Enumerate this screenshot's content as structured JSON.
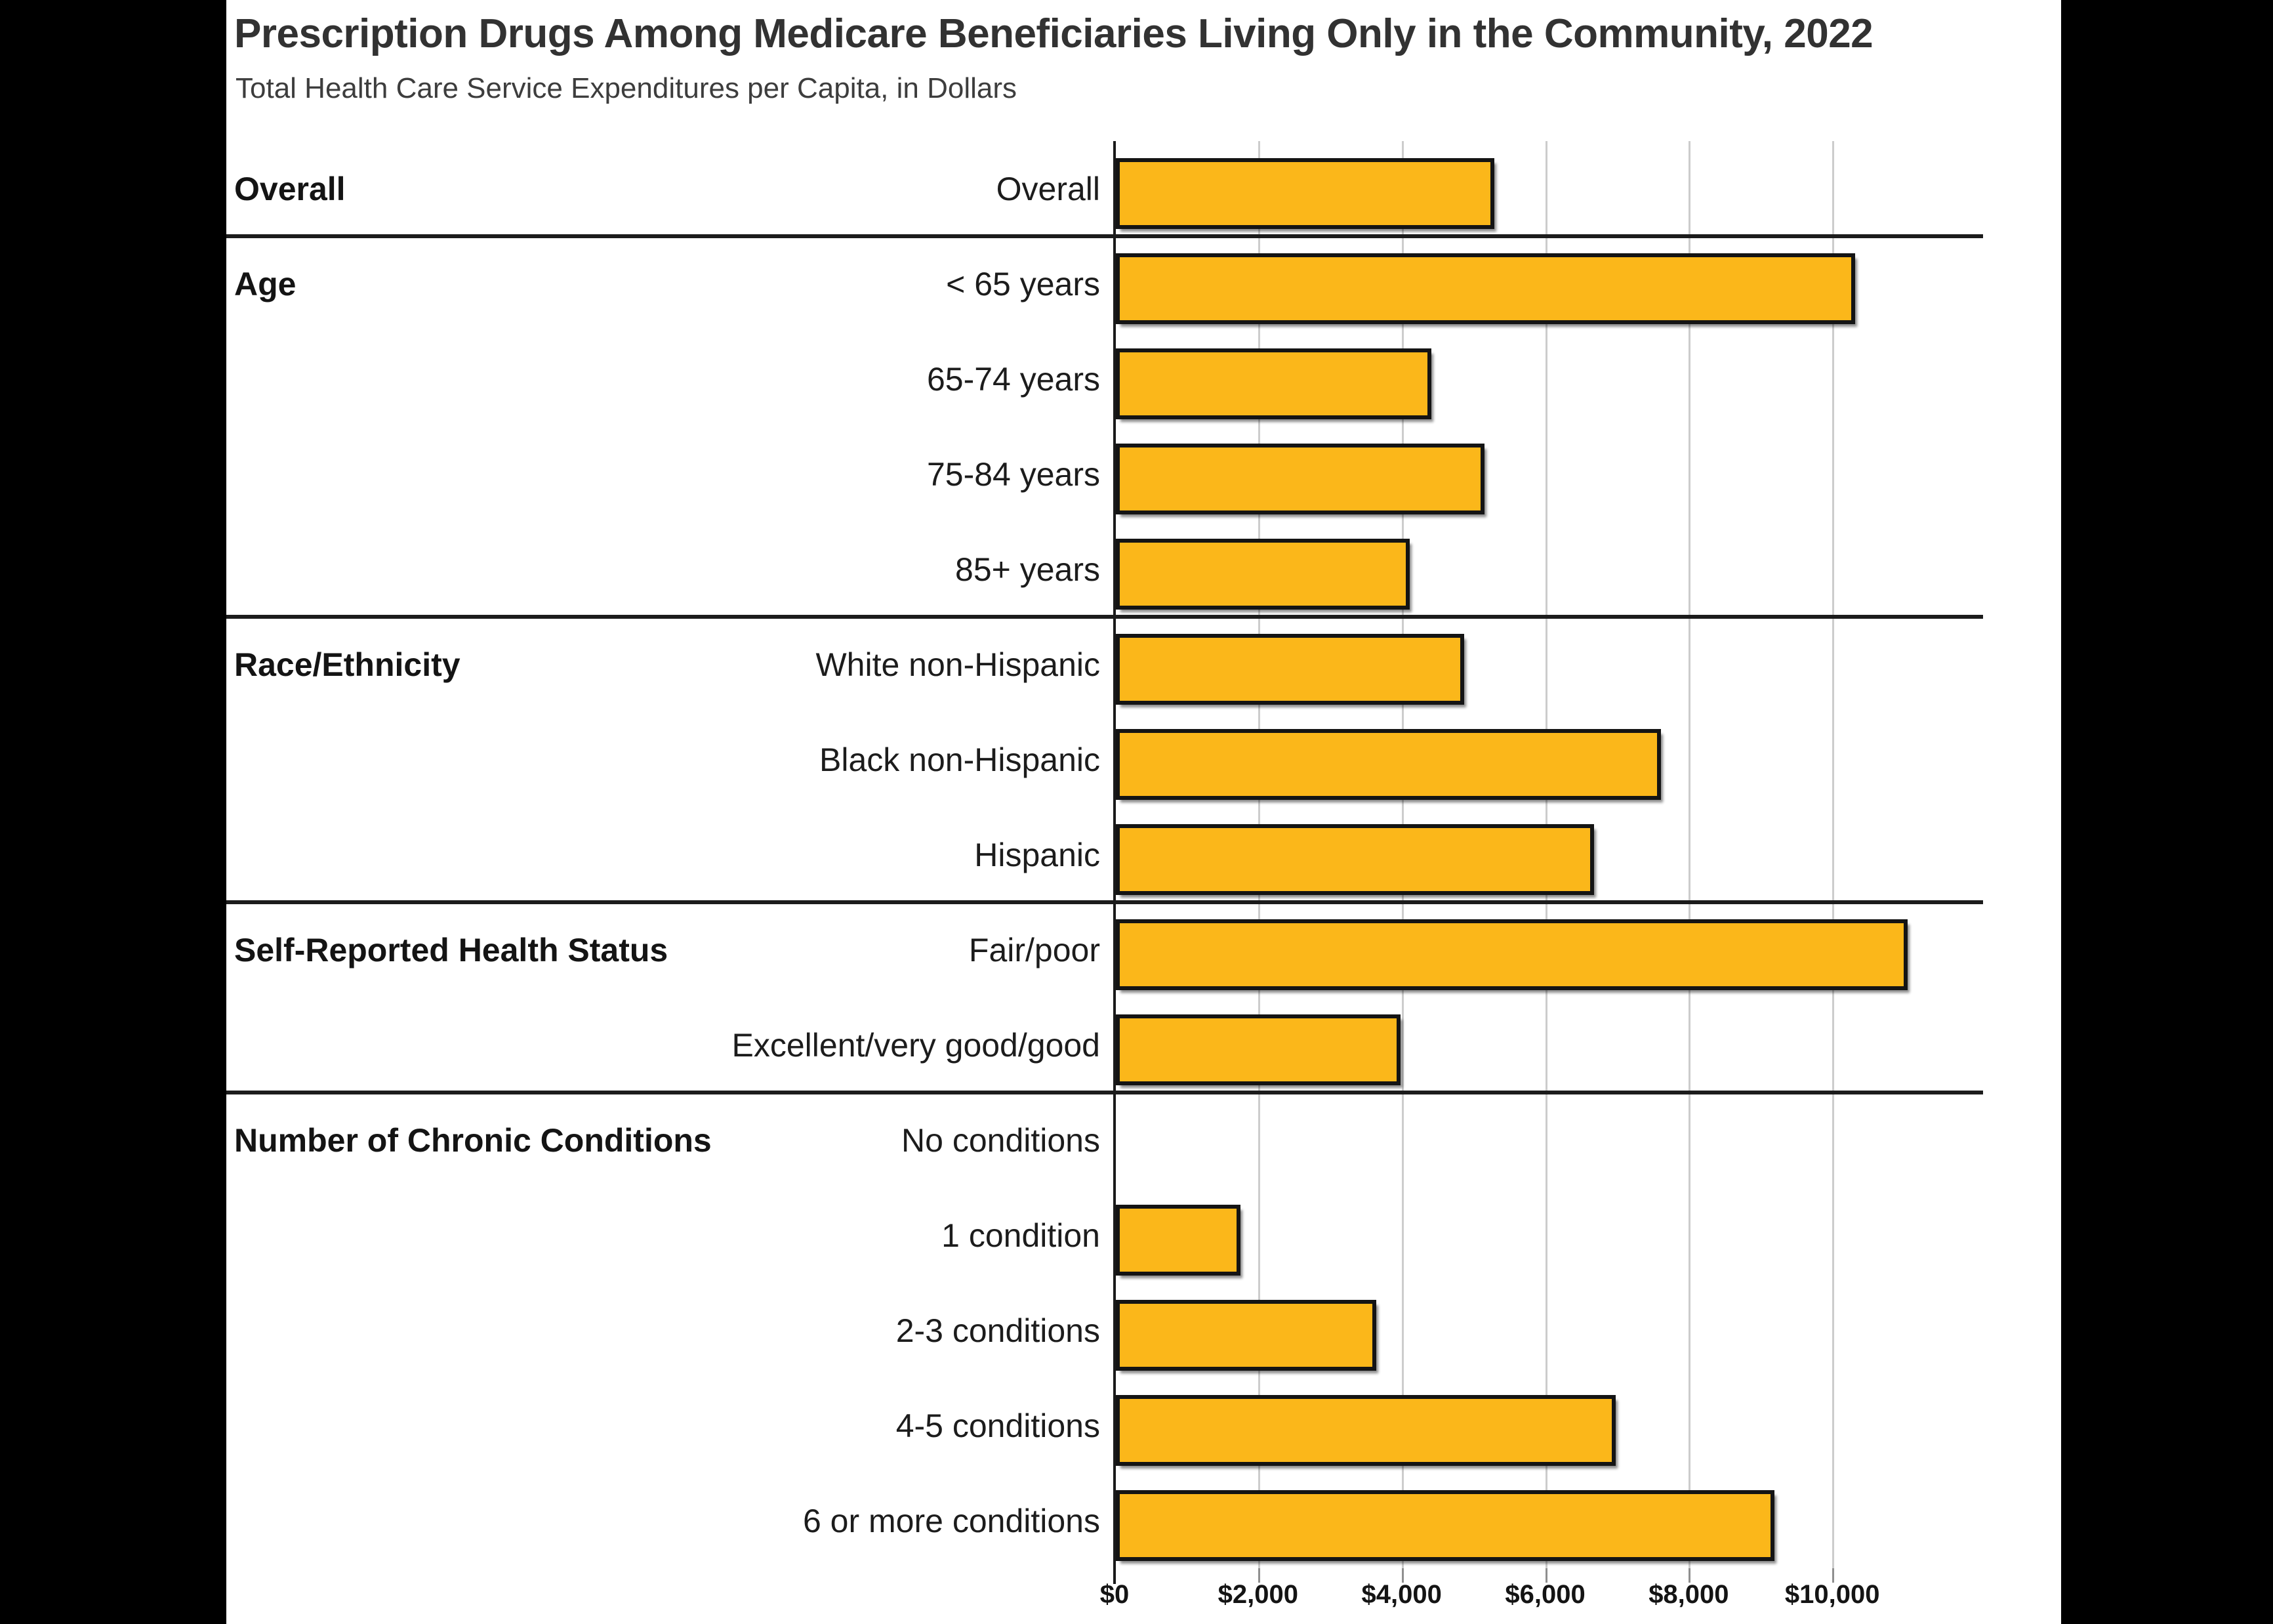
{
  "page": {
    "title": "Prescription Drugs Among Medicare Beneficiaries Living Only in the Community, 2022",
    "subtitle": "Total Health Care Service Expenditures per Capita, in Dollars"
  },
  "colors": {
    "bar_fill": "#FBB71A",
    "bar_border": "#141414",
    "axis_line": "#1a1a1a",
    "gridline": "#cccccc",
    "separator": "#1c1c1c",
    "background": "#ffffff",
    "letterbox": "#000000",
    "title_text": "#323232",
    "label_text": "#1c1c1c"
  },
  "chart_data": {
    "type": "bar",
    "orientation": "horizontal",
    "title": "Prescription Drugs Among Medicare Beneficiaries Living Only in the Community, 2022",
    "subtitle": "Total Health Care Service Expenditures per Capita, in Dollars",
    "xlabel": "Total Health Care Service Expenditures per Capita, in Dollars",
    "ylabel": "",
    "xlim": [
      0,
      12100
    ],
    "grid": "vertical gridlines at $2,000 intervals",
    "legend_position": "none",
    "x_axis": {
      "tick_values": [
        0,
        2000,
        4000,
        6000,
        8000,
        10000
      ],
      "tick_labels": [
        "$0",
        "$2,000",
        "$4,000",
        "$6,000",
        "$8,000",
        "$10,000"
      ]
    },
    "sections": [
      {
        "label": "Overall",
        "rows": [
          {
            "label": "Overall",
            "value": 5270
          }
        ]
      },
      {
        "label": "Age",
        "rows": [
          {
            "label": "< 65 years",
            "value": 10300
          },
          {
            "label": "65-74 years",
            "value": 4400
          },
          {
            "label": "75-84 years",
            "value": 5140
          },
          {
            "label": "85+ years",
            "value": 4090
          }
        ]
      },
      {
        "label": "Race/Ethnicity",
        "rows": [
          {
            "label": "White non-Hispanic",
            "value": 4850
          },
          {
            "label": "Black non-Hispanic",
            "value": 7590
          },
          {
            "label": "Hispanic",
            "value": 6660
          }
        ]
      },
      {
        "label": "Self-Reported Health Status",
        "rows": [
          {
            "label": "Fair/poor",
            "value": 11030
          },
          {
            "label": "Excellent/very good/good",
            "value": 3970
          }
        ]
      },
      {
        "label": "Number of Chronic Conditions",
        "rows": [
          {
            "label": "No conditions",
            "value": 0
          },
          {
            "label": "1 condition",
            "value": 1740
          },
          {
            "label": "2-3 conditions",
            "value": 3630
          },
          {
            "label": "4-5 conditions",
            "value": 6960
          },
          {
            "label": "6 or more conditions",
            "value": 9180
          }
        ]
      }
    ]
  }
}
